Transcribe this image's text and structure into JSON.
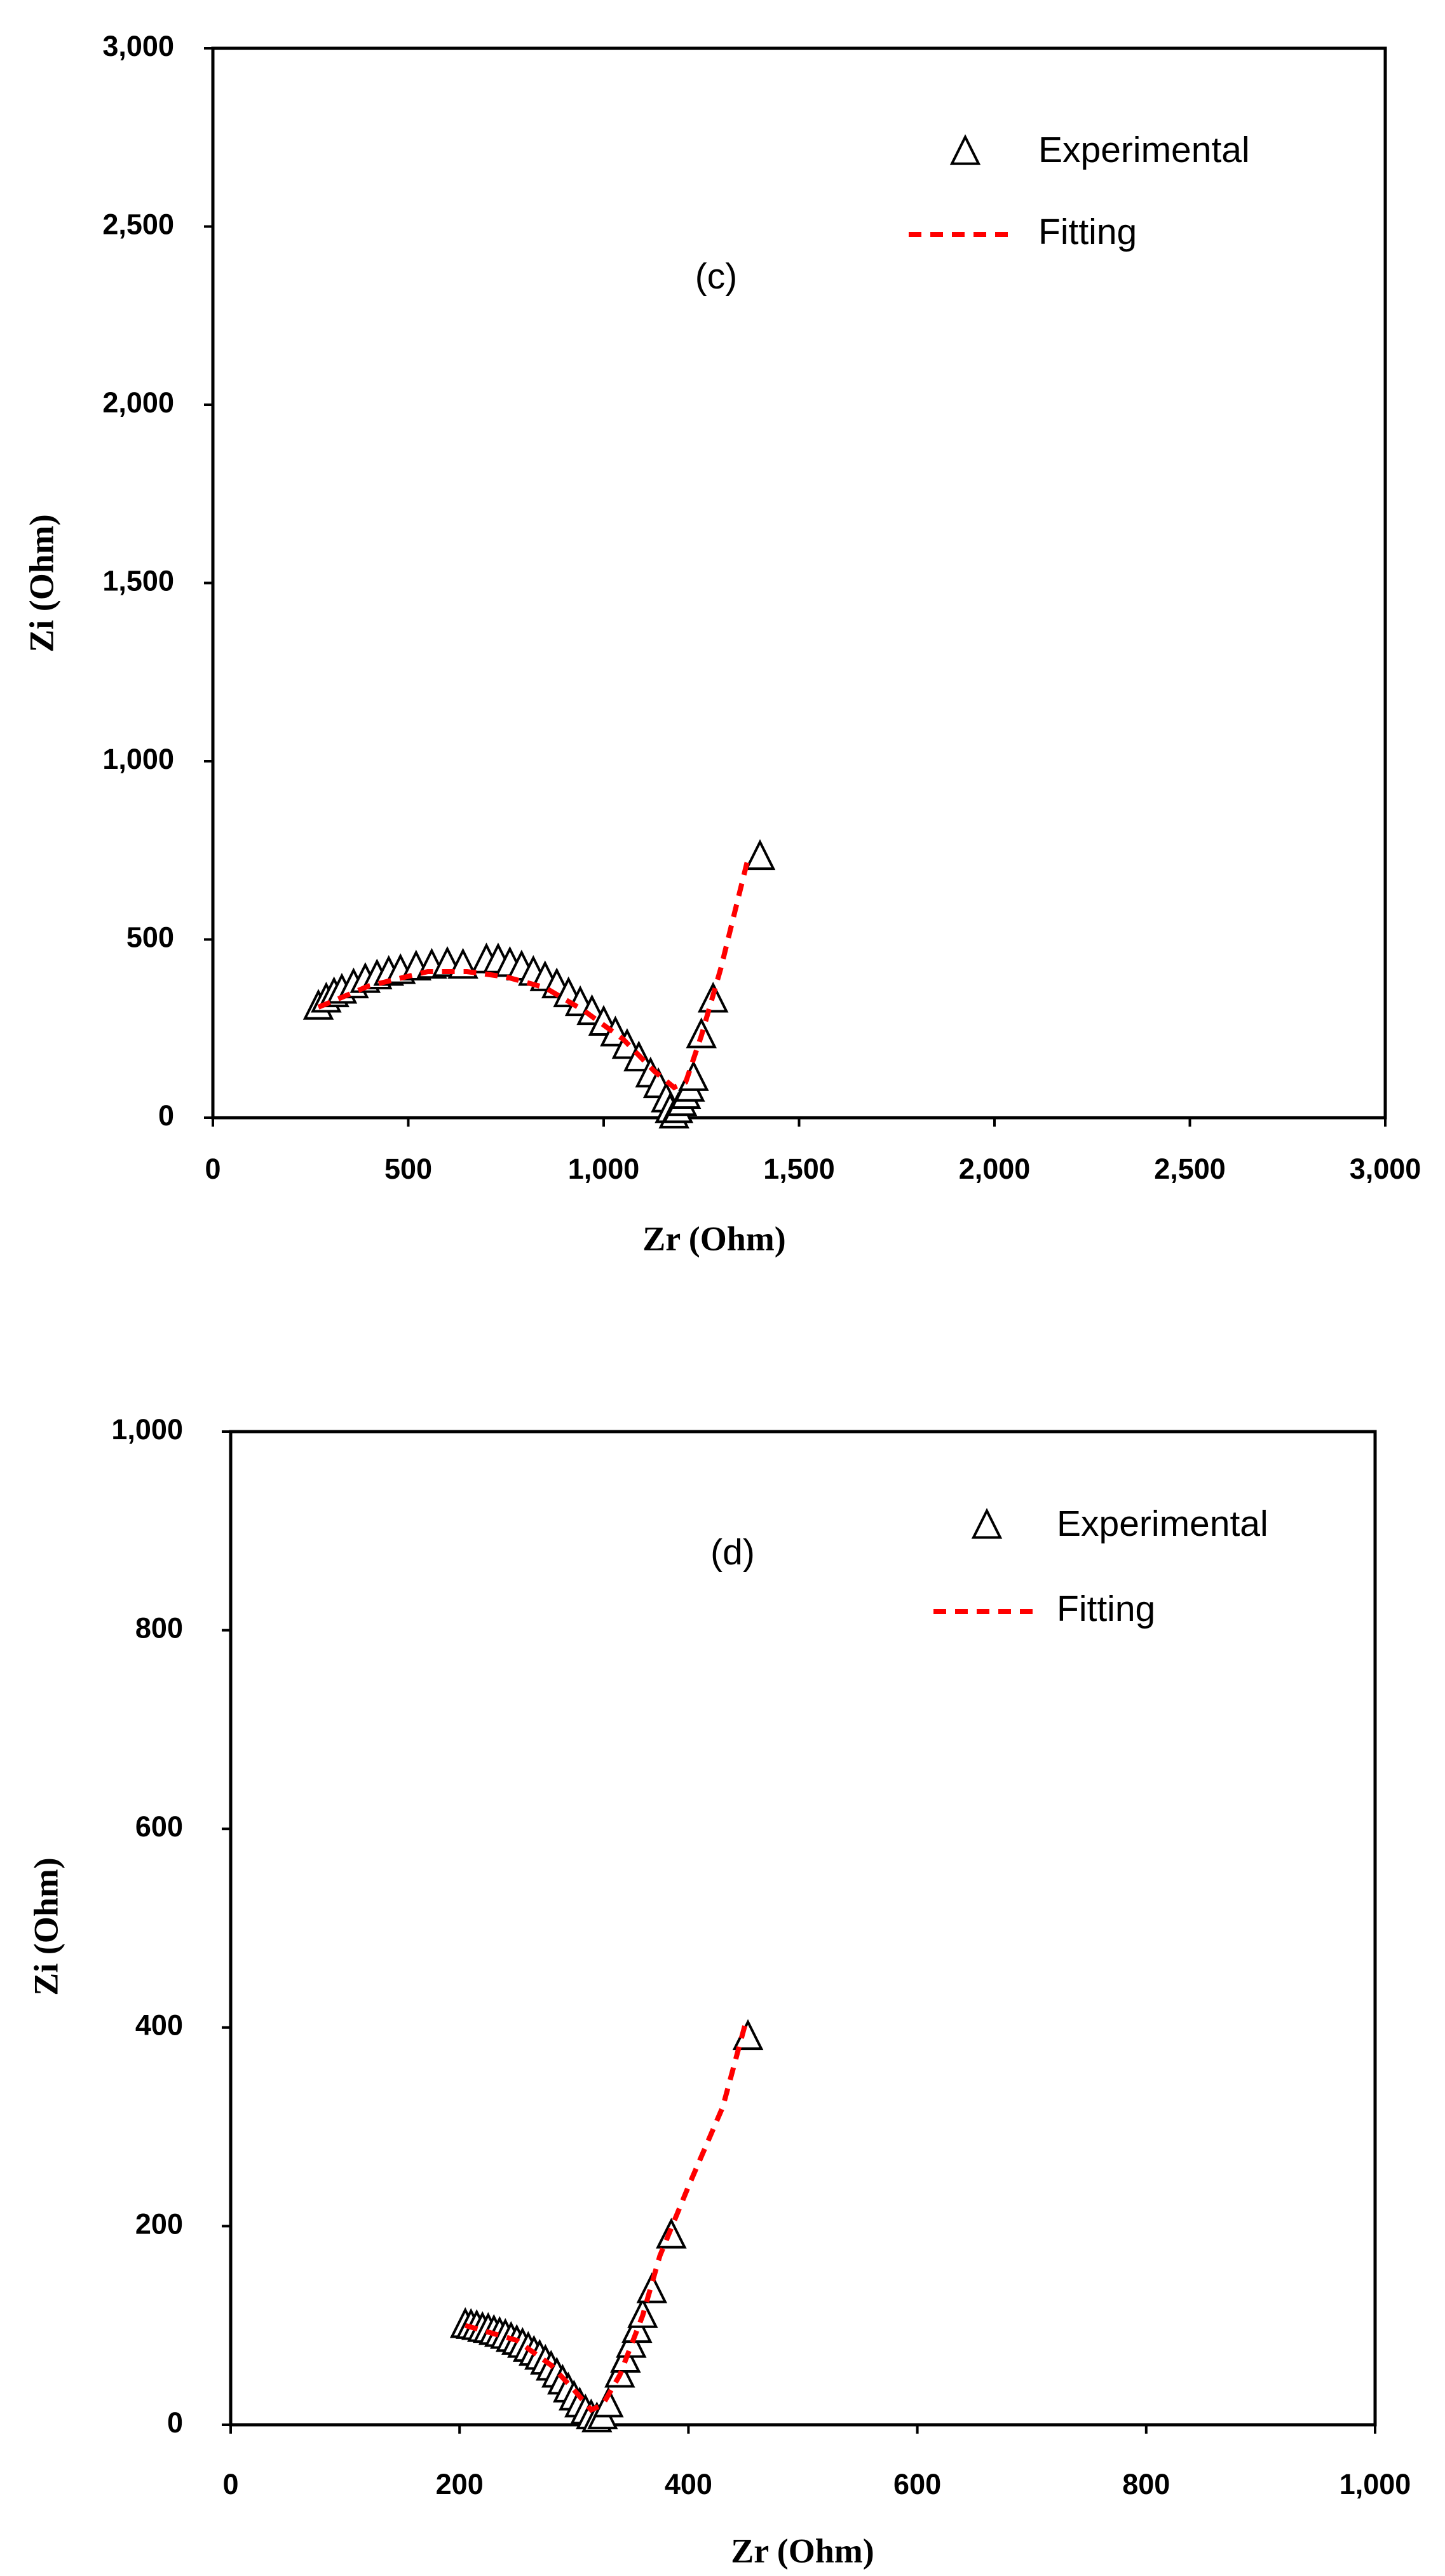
{
  "chart_data": [
    {
      "type": "scatter",
      "annotation": "(c)",
      "x_label": "Zr (Ohm)",
      "y_label": "Zi (Ohm)",
      "xlim": [
        0,
        3000
      ],
      "ylim": [
        0,
        3000
      ],
      "xticks": [
        0,
        500,
        {
          "value": 1000,
          "label": "1,000"
        },
        {
          "value": 1500,
          "label": "1,500"
        },
        {
          "value": 2000,
          "label": "2,000"
        },
        {
          "value": 2500,
          "label": "2,500"
        },
        {
          "value": 3000,
          "label": "3,000"
        }
      ],
      "yticks": [
        0,
        500,
        {
          "value": 1000,
          "label": "1,000"
        },
        {
          "value": 1500,
          "label": "1,500"
        },
        {
          "value": 2000,
          "label": "2,000"
        },
        {
          "value": 2500,
          "label": "2,500"
        },
        {
          "value": 3000,
          "label": "3,000"
        }
      ],
      "series": [
        {
          "name": "Experimental",
          "color": "#000000",
          "marker": "triangle",
          "x": [
            270,
            290,
            310,
            330,
            360,
            390,
            420,
            450,
            480,
            520,
            560,
            600,
            640,
            700,
            730,
            760,
            790,
            820,
            850,
            880,
            910,
            940,
            970,
            1000,
            1030,
            1060,
            1090,
            1120,
            1140,
            1160,
            1170,
            1180,
            1190,
            1200,
            1210,
            1220,
            1230,
            1250,
            1280,
            1400
          ],
          "values": [
            310,
            330,
            345,
            355,
            370,
            385,
            395,
            405,
            410,
            420,
            425,
            430,
            425,
            440,
            440,
            430,
            420,
            405,
            390,
            370,
            345,
            320,
            295,
            265,
            235,
            200,
            165,
            120,
            90,
            50,
            20,
            5,
            20,
            40,
            60,
            80,
            110,
            230,
            330,
            730
          ]
        },
        {
          "name": "Fitting",
          "color": "#ff0000",
          "marker": "dashed-line",
          "x": [
            270,
            400,
            550,
            650,
            750,
            850,
            950,
            1050,
            1130,
            1180,
            1210,
            1250,
            1300,
            1370
          ],
          "values": [
            310,
            370,
            410,
            410,
            395,
            365,
            300,
            220,
            130,
            85,
            100,
            230,
            420,
            730
          ]
        }
      ]
    },
    {
      "type": "scatter",
      "annotation": "(d)",
      "x_label": "Zr (Ohm)",
      "y_label": "Zi (Ohm)",
      "xlim": [
        0,
        1000
      ],
      "ylim": [
        0,
        1000
      ],
      "xticks": [
        0,
        200,
        400,
        600,
        800,
        {
          "value": 1000,
          "label": "1,000"
        }
      ],
      "yticks": [
        0,
        200,
        400,
        600,
        800,
        {
          "value": 1000,
          "label": "1,000"
        }
      ],
      "series": [
        {
          "name": "Experimental",
          "color": "#000000",
          "marker": "triangle",
          "x": [
            205,
            210,
            215,
            220,
            225,
            230,
            235,
            240,
            245,
            250,
            255,
            260,
            265,
            270,
            275,
            280,
            285,
            290,
            295,
            300,
            305,
            310,
            315,
            320,
            325,
            330,
            340,
            345,
            350,
            355,
            360,
            368,
            385,
            452
          ],
          "values": [
            100,
            99,
            98,
            96,
            95,
            93,
            91,
            89,
            86,
            83,
            80,
            76,
            72,
            68,
            63,
            57,
            50,
            43,
            35,
            27,
            20,
            13,
            8,
            5,
            8,
            20,
            50,
            65,
            80,
            95,
            110,
            135,
            190,
            390
          ]
        },
        {
          "name": "Fitting",
          "color": "#ff0000",
          "marker": "dashed-line",
          "x": [
            205,
            250,
            280,
            300,
            315,
            325,
            340,
            360,
            375,
            400,
            430,
            450
          ],
          "values": [
            100,
            85,
            60,
            35,
            15,
            20,
            50,
            110,
            170,
            240,
            320,
            405
          ]
        }
      ]
    }
  ]
}
